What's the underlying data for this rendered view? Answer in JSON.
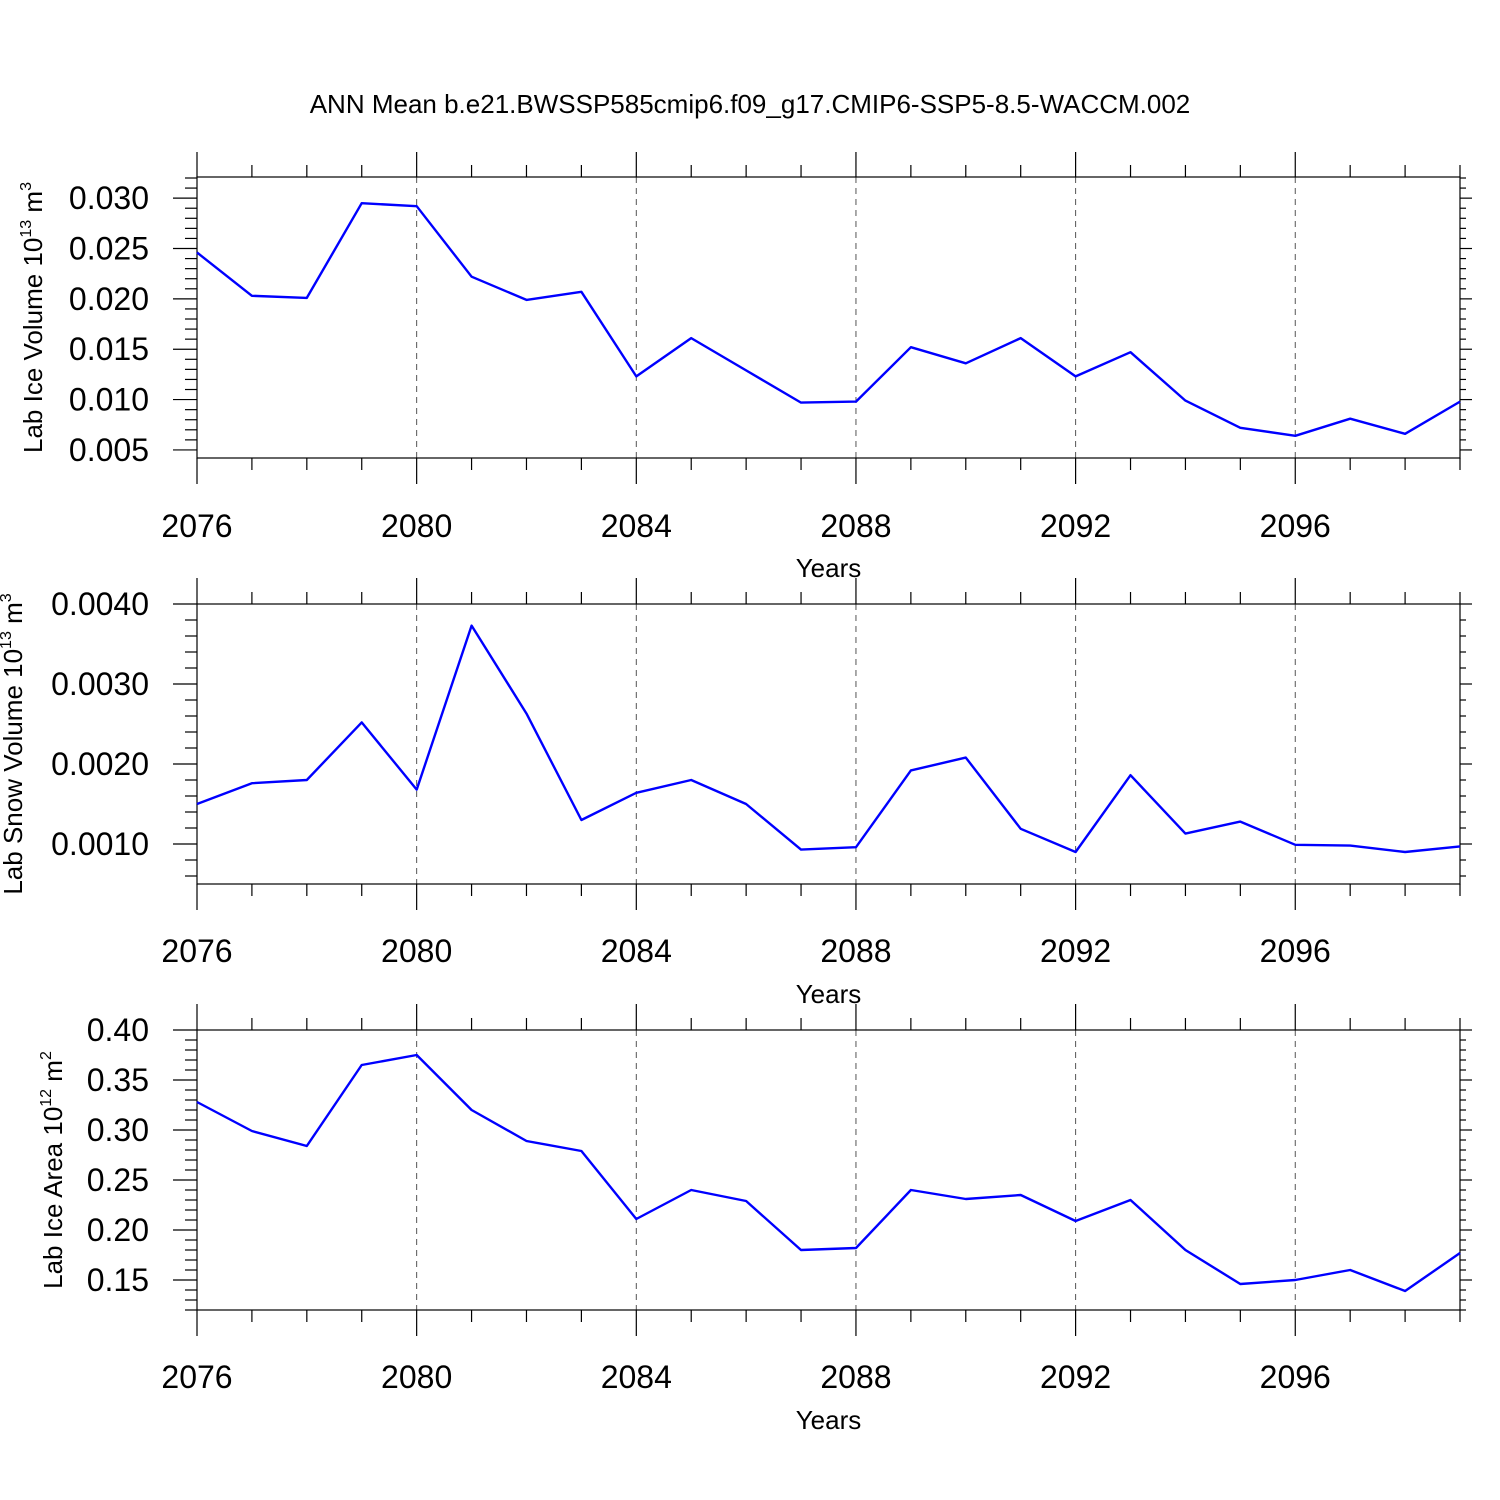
{
  "figure": {
    "title": "ANN Mean b.e21.BWSSP585cmip6.f09_g17.CMIP6-SSP5-8.5-WACCM.002",
    "line_color": "#0000ff"
  },
  "chart_data": [
    {
      "type": "line",
      "title": "",
      "xlabel": "Years",
      "ylabel": {
        "prefix": "Lab Ice Volume 10",
        "exp1": "13",
        "mid": " m",
        "exp2": "3"
      },
      "xlim": [
        2076,
        2099
      ],
      "ylim": [
        0.0042,
        0.0321
      ],
      "xticks": [
        2076,
        2080,
        2084,
        2088,
        2092,
        2096
      ],
      "yticks": [
        0.005,
        0.01,
        0.015,
        0.02,
        0.025,
        0.03
      ],
      "ytick_labels": [
        "0.005",
        "0.010",
        "0.015",
        "0.020",
        "0.025",
        "0.030"
      ],
      "grid": "vertical dashed at major x ticks",
      "x": [
        2076,
        2077,
        2078,
        2079,
        2080,
        2081,
        2082,
        2083,
        2084,
        2085,
        2086,
        2087,
        2088,
        2089,
        2090,
        2091,
        2092,
        2093,
        2094,
        2095,
        2096,
        2097,
        2098,
        2099
      ],
      "series": [
        {
          "name": "Lab Ice Volume",
          "values": [
            0.0246,
            0.0203,
            0.0201,
            0.0295,
            0.0292,
            0.0222,
            0.0199,
            0.0207,
            0.0123,
            0.0161,
            0.0129,
            0.0097,
            0.0098,
            0.0152,
            0.0136,
            0.0161,
            0.0123,
            0.0147,
            0.0099,
            0.0072,
            0.0064,
            0.0081,
            0.0066,
            0.0098
          ]
        }
      ]
    },
    {
      "type": "line",
      "title": "",
      "xlabel": "Years",
      "ylabel": {
        "prefix": "Lab Snow Volume 10",
        "exp1": "13",
        "mid": " m",
        "exp2": "3"
      },
      "xlim": [
        2076,
        2099
      ],
      "ylim": [
        0.0005,
        0.004
      ],
      "xticks": [
        2076,
        2080,
        2084,
        2088,
        2092,
        2096
      ],
      "yticks": [
        0.001,
        0.002,
        0.003,
        0.004
      ],
      "ytick_labels": [
        "0.0010",
        "0.0020",
        "0.0030",
        "0.0040"
      ],
      "grid": "vertical dashed at major x ticks",
      "x": [
        2076,
        2077,
        2078,
        2079,
        2080,
        2081,
        2082,
        2083,
        2084,
        2085,
        2086,
        2087,
        2088,
        2089,
        2090,
        2091,
        2092,
        2093,
        2094,
        2095,
        2096,
        2097,
        2098,
        2099
      ],
      "series": [
        {
          "name": "Lab Snow Volume",
          "values": [
            0.0015,
            0.00176,
            0.0018,
            0.00252,
            0.00168,
            0.00373,
            0.00263,
            0.0013,
            0.00164,
            0.0018,
            0.0015,
            0.00093,
            0.00096,
            0.00192,
            0.00208,
            0.00119,
            0.0009,
            0.00186,
            0.00113,
            0.00128,
            0.00099,
            0.00098,
            0.0009,
            0.00097
          ]
        }
      ]
    },
    {
      "type": "line",
      "title": "",
      "xlabel": "Years",
      "ylabel": {
        "prefix": "Lab Ice Area 10",
        "exp1": "12",
        "mid": " m",
        "exp2": "2"
      },
      "xlim": [
        2076,
        2099
      ],
      "ylim": [
        0.12,
        0.4
      ],
      "xticks": [
        2076,
        2080,
        2084,
        2088,
        2092,
        2096
      ],
      "yticks": [
        0.15,
        0.2,
        0.25,
        0.3,
        0.35,
        0.4
      ],
      "ytick_labels": [
        "0.15",
        "0.20",
        "0.25",
        "0.30",
        "0.35",
        "0.40"
      ],
      "grid": "vertical dashed at major x ticks",
      "x": [
        2076,
        2077,
        2078,
        2079,
        2080,
        2081,
        2082,
        2083,
        2084,
        2085,
        2086,
        2087,
        2088,
        2089,
        2090,
        2091,
        2092,
        2093,
        2094,
        2095,
        2096,
        2097,
        2098,
        2099
      ],
      "series": [
        {
          "name": "Lab Ice Area",
          "values": [
            0.328,
            0.299,
            0.284,
            0.365,
            0.375,
            0.32,
            0.289,
            0.279,
            0.211,
            0.24,
            0.229,
            0.18,
            0.182,
            0.24,
            0.231,
            0.235,
            0.209,
            0.23,
            0.18,
            0.146,
            0.15,
            0.16,
            0.139,
            0.177
          ]
        }
      ]
    }
  ]
}
